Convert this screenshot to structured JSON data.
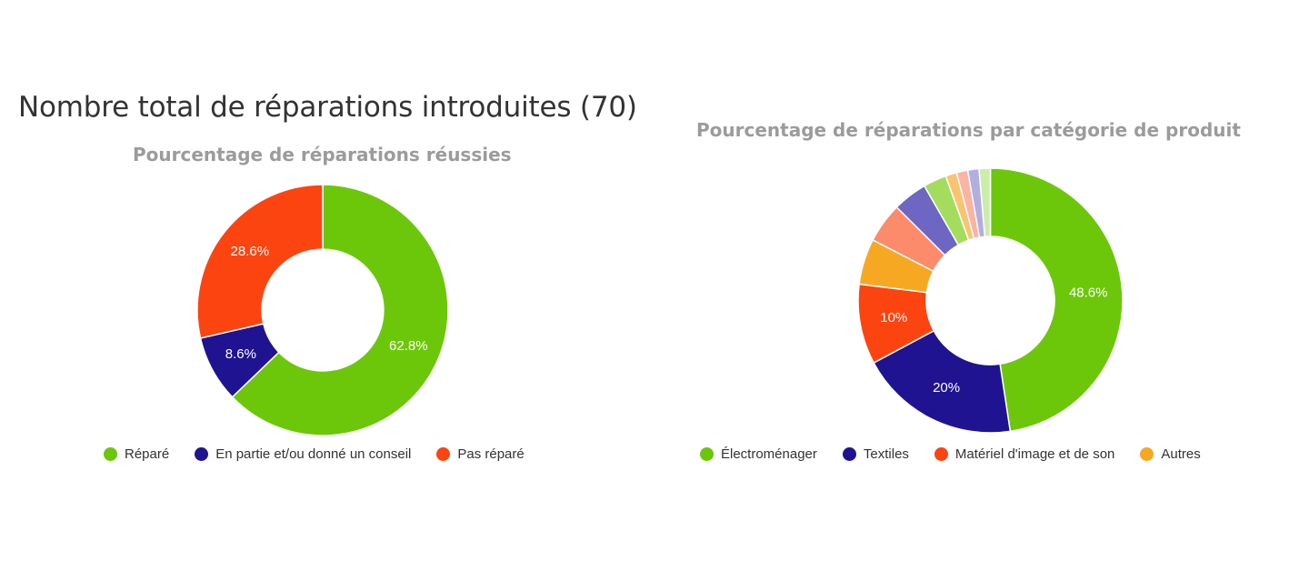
{
  "heading": "Nombre total de réparations introduites (70)",
  "chart_data": [
    {
      "type": "pie",
      "donut": true,
      "title": "Pourcentage de réparations réussies",
      "legend_position": "bottom",
      "series": [
        {
          "name": "Réparé",
          "value": 62.8,
          "label": "62.8%",
          "color": "#6cc70a"
        },
        {
          "name": "En partie et/ou donné un conseil",
          "value": 8.6,
          "label": "8.6%",
          "color": "#1f1392"
        },
        {
          "name": "Pas réparé",
          "value": 28.6,
          "label": "28.6%",
          "color": "#fc4411"
        }
      ]
    },
    {
      "type": "pie",
      "donut": true,
      "title": "Pourcentage de réparations par catégorie de produit",
      "legend_position": "bottom",
      "series": [
        {
          "name": "Électroménager",
          "value": 48.6,
          "label": "48.6%",
          "color": "#6cc70a",
          "legend": true
        },
        {
          "name": "Textiles",
          "value": 20,
          "label": "20%",
          "color": "#1f1392",
          "legend": true
        },
        {
          "name": "Matériel d'image et de son",
          "value": 10,
          "label": "10%",
          "color": "#fc4411",
          "legend": true
        },
        {
          "name": "Autres",
          "value": 5.7,
          "label": "",
          "color": "#f7a823",
          "legend": true
        },
        {
          "name": "",
          "value": 5.0,
          "label": "",
          "color": "#fc8b6b",
          "legend": false
        },
        {
          "name": "",
          "value": 4.3,
          "label": "",
          "color": "#6d66c2",
          "legend": false
        },
        {
          "name": "",
          "value": 2.9,
          "label": "",
          "color": "#a4dd5e",
          "legend": false
        },
        {
          "name": "",
          "value": 1.4,
          "label": "",
          "color": "#f9c472",
          "legend": false
        },
        {
          "name": "",
          "value": 1.4,
          "label": "",
          "color": "#fbb3a3",
          "legend": false
        },
        {
          "name": "",
          "value": 1.4,
          "label": "",
          "color": "#b3aee0",
          "legend": false
        },
        {
          "name": "",
          "value": 1.4,
          "label": "",
          "color": "#cbedaa",
          "legend": false
        }
      ]
    }
  ]
}
